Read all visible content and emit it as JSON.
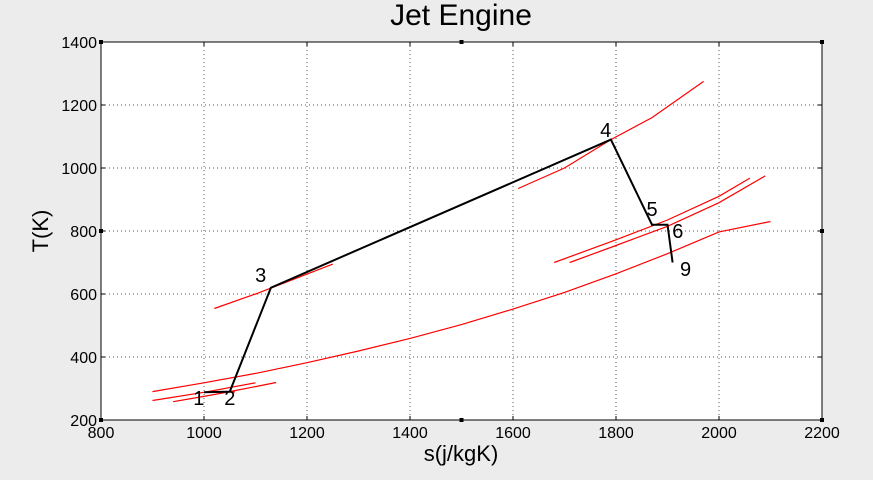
{
  "chart_data": {
    "type": "line",
    "title": "Jet Engine",
    "xlabel": "s(j/kgK)",
    "ylabel": "T(K)",
    "xlim": [
      800,
      2200
    ],
    "ylim": [
      200,
      1400
    ],
    "xticks": [
      800,
      1000,
      1200,
      1400,
      1600,
      1800,
      2000,
      2200
    ],
    "yticks": [
      200,
      400,
      600,
      800,
      1000,
      1200,
      1400
    ],
    "grid": true,
    "colors": {
      "cycle": "#000000",
      "isobar": "#ff0000",
      "background": "#ffffff",
      "figure": "#ececec"
    },
    "cycle": {
      "name": "cycle",
      "x": [
        1000,
        1050,
        1130,
        1790,
        1870,
        1900,
        1910
      ],
      "y": [
        288,
        290,
        620,
        1090,
        820,
        820,
        700
      ]
    },
    "isobars": [
      {
        "x": [
          900,
          1000,
          1100,
          1200,
          1300,
          1400,
          1500,
          1600,
          1700,
          1800,
          1900,
          2000,
          2100
        ],
        "y": [
          290,
          318,
          348,
          382,
          419,
          459,
          503,
          552,
          605,
          664,
          728,
          797,
          830
        ]
      },
      {
        "x": [
          900,
          1000,
          1100
        ],
        "y": [
          262,
          288,
          318
        ]
      },
      {
        "x": [
          940,
          1000,
          1050,
          1100,
          1140
        ],
        "y": [
          258,
          275,
          290,
          306,
          319
        ]
      },
      {
        "x": [
          1020,
          1060
        ],
        "y": [
          289,
          289
        ]
      },
      {
        "x": [
          1020,
          1100,
          1250
        ],
        "y": [
          554,
          600,
          695
        ]
      },
      {
        "x": [
          1610,
          1700,
          1790,
          1870,
          1970
        ],
        "y": [
          935,
          1000,
          1090,
          1160,
          1275
        ]
      },
      {
        "x": [
          1680,
          1800,
          1900,
          2000,
          2060
        ],
        "y": [
          700,
          772,
          835,
          910,
          968
        ]
      },
      {
        "x": [
          1710,
          1800,
          1900,
          2000,
          2090
        ],
        "y": [
          700,
          754,
          815,
          890,
          975
        ]
      }
    ],
    "point_labels": [
      {
        "text": "1",
        "x": 990,
        "y": 270
      },
      {
        "text": "2",
        "x": 1050,
        "y": 270
      },
      {
        "text": "3",
        "x": 1110,
        "y": 660
      },
      {
        "text": "4",
        "x": 1780,
        "y": 1120
      },
      {
        "text": "5",
        "x": 1870,
        "y": 870
      },
      {
        "text": "6",
        "x": 1920,
        "y": 800
      },
      {
        "text": "9",
        "x": 1935,
        "y": 680
      }
    ]
  }
}
